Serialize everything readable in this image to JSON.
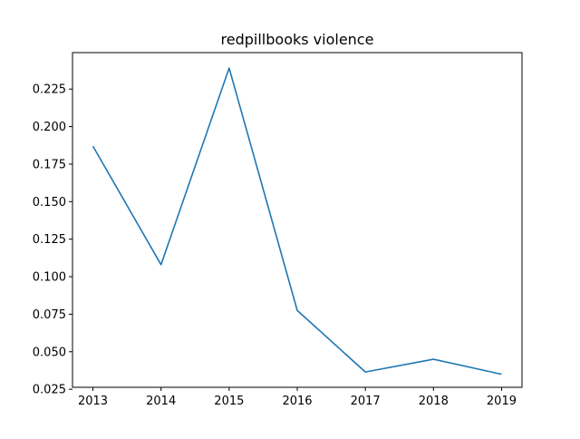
{
  "chart_data": {
    "type": "line",
    "title": "redpillbooks violence",
    "xlabel": "",
    "ylabel": "",
    "x": [
      2013,
      2014,
      2015,
      2016,
      2017,
      2018,
      2019
    ],
    "series": [
      {
        "values": [
          0.187,
          0.108,
          0.239,
          0.0775,
          0.0365,
          0.045,
          0.035
        ],
        "color": "#1f77b4"
      }
    ],
    "xlim": [
      2012.7,
      2019.3
    ],
    "ylim": [
      0.0263,
      0.2493
    ],
    "xticks": [
      "2013",
      "2014",
      "2015",
      "2016",
      "2017",
      "2018",
      "2019"
    ],
    "yticks": [
      0.025,
      0.05,
      0.075,
      0.1,
      0.125,
      0.15,
      0.175,
      0.2,
      0.225
    ],
    "ytick_labels": [
      "0.025",
      "0.050",
      "0.075",
      "0.100",
      "0.125",
      "0.150",
      "0.175",
      "0.200",
      "0.225"
    ],
    "grid": false,
    "legend": "none"
  }
}
